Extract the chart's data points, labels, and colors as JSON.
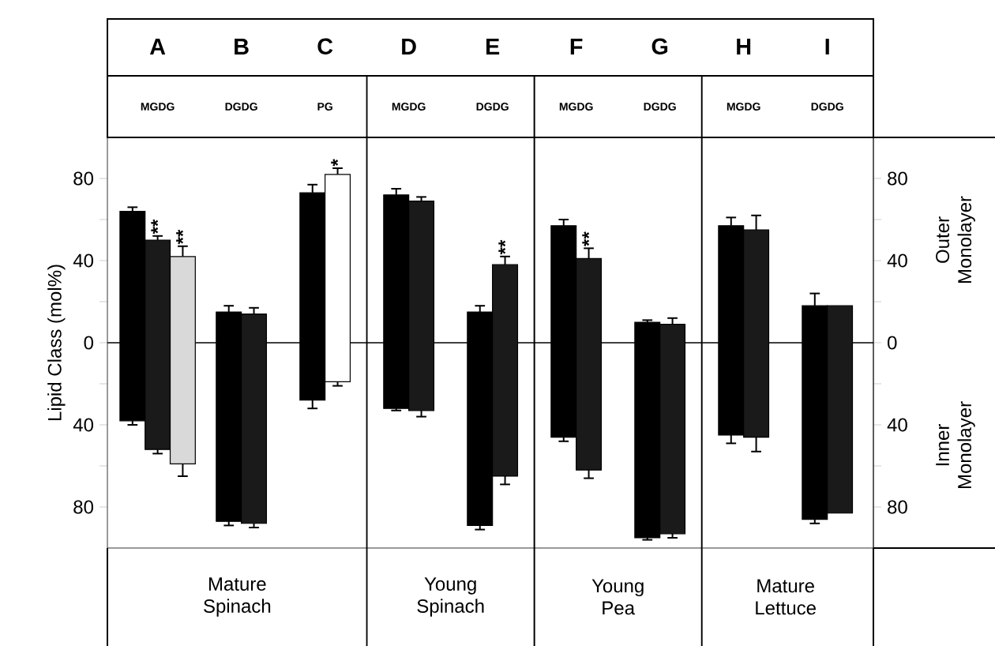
{
  "chart_data": {
    "type": "bar",
    "ylabel": "Lipid Class (mol%)",
    "categories": [
      "A",
      "B",
      "C",
      "D",
      "E",
      "F",
      "G",
      "H",
      "I"
    ],
    "series": [
      {
        "color": "#000000",
        "base": [
          -38,
          -87,
          -28,
          -32,
          -89,
          -46,
          -95,
          -45,
          -86
        ],
        "values": [
          102,
          102,
          101,
          104,
          104,
          103,
          105,
          102,
          104
        ],
        "errors": [
          [
            -40,
            66
          ],
          [
            -89,
            18
          ],
          [
            -32,
            77
          ],
          [
            -33,
            75
          ],
          [
            -91,
            18
          ],
          [
            -48,
            60
          ],
          [
            -96,
            11
          ],
          [
            -49,
            61
          ],
          [
            -88,
            24
          ]
        ]
      },
      {
        "colors": [
          "#1a1a1a",
          "#1a1a1a",
          "#ffffff",
          "#1a1a1a",
          "#1a1a1a",
          "#1a1a1a",
          "#1a1a1a",
          "#1a1a1a",
          "#1a1a1a"
        ],
        "base": [
          -52,
          -88,
          -19,
          -33,
          -65,
          -62,
          -93,
          -46,
          -83
        ],
        "values": [
          102,
          102,
          101,
          102,
          103,
          103,
          102,
          101,
          101
        ],
        "errors": [
          [
            -54,
            52
          ],
          [
            -90,
            17
          ],
          [
            -21,
            85
          ],
          [
            -36,
            71
          ],
          [
            -69,
            42
          ],
          [
            -66,
            46
          ],
          [
            -95,
            12
          ],
          [
            -53,
            62
          ],
          null
        ]
      },
      {
        "color": "#d9d9d9",
        "base": [
          -59,
          null,
          null,
          null,
          null,
          null,
          null,
          null,
          null
        ],
        "values": [
          101,
          null,
          null,
          null,
          null,
          null,
          null,
          null,
          null
        ],
        "errors": [
          [
            -65,
            47
          ],
          null,
          null,
          null,
          null,
          null,
          null,
          null,
          null
        ]
      }
    ],
    "ylim": [
      -100,
      100
    ],
    "yticks": [
      {
        "value": -80,
        "label": "80"
      },
      {
        "value": -60,
        "label": null
      },
      {
        "value": -40,
        "label": "40"
      },
      {
        "value": -20,
        "label": null
      },
      0,
      {
        "value": 20,
        "label": null
      },
      {
        "value": 40,
        "label": "40"
      },
      {
        "value": 60,
        "label": null
      },
      {
        "value": 80,
        "label": "80"
      }
    ],
    "y2lim": [
      -100,
      100
    ],
    "y2ticks": [
      {
        "value": -80,
        "label": "80"
      },
      {
        "value": -60,
        "label": null
      },
      {
        "value": -40,
        "label": "40"
      },
      {
        "value": -20,
        "label": null
      },
      0,
      {
        "value": 20,
        "label": null
      },
      {
        "value": 40,
        "label": "40"
      },
      {
        "value": 60,
        "label": null
      },
      {
        "value": 80,
        "label": "80"
      }
    ],
    "ref_lines": [
      {
        "axis": "y",
        "value": 0
      }
    ],
    "annotations": [
      "MGDG",
      "DGDG",
      "PG",
      "MGDG",
      "DGDG",
      "MGDG",
      "DGDG",
      "MGDG",
      "DGDG",
      "Mature Spinach",
      "Young Spinach",
      "Young Pea",
      "Mature Lettuce",
      "Outer Monolayer",
      "Inner Monolayer",
      "**",
      "**",
      "*",
      "**",
      "**"
    ]
  }
}
